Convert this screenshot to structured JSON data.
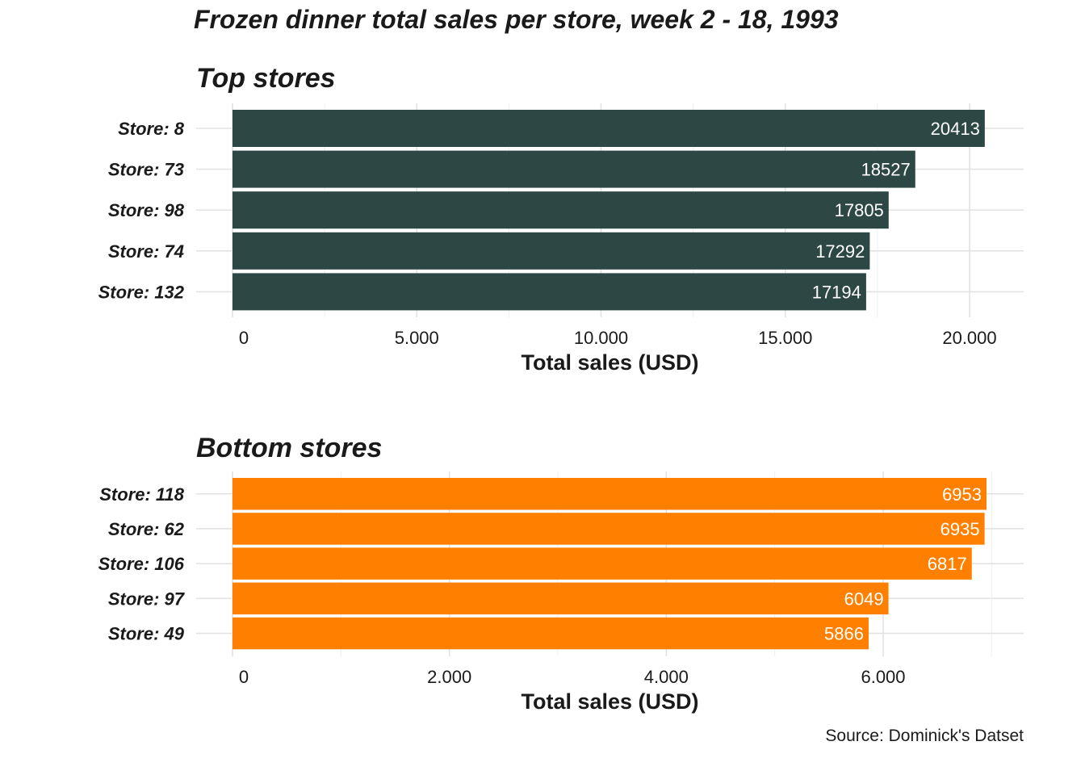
{
  "title": "Frozen dinner total sales per store, week 2 - 18, 1993",
  "caption": "Source: Dominick's Datset",
  "colors": {
    "top": "#2c4744",
    "bottom": "#ff7f00"
  },
  "chart_data": [
    {
      "type": "bar",
      "orientation": "horizontal",
      "title": "Top stores",
      "xlabel": "Total sales (USD)",
      "ylabel": "",
      "categories": [
        "Store: 8",
        "Store: 73",
        "Store: 98",
        "Store: 74",
        "Store: 132"
      ],
      "values": [
        20413,
        18527,
        17805,
        17292,
        17194
      ],
      "value_labels": [
        "20413",
        "18527",
        "17805",
        "17292",
        "17194"
      ],
      "xlim": [
        0,
        21000
      ],
      "ticks": [
        0,
        5000,
        10000,
        15000,
        20000
      ],
      "tick_labels": [
        "0",
        "5.000",
        "10.000",
        "15.000",
        "20.000"
      ],
      "grid": true,
      "color": "#2c4744"
    },
    {
      "type": "bar",
      "orientation": "horizontal",
      "title": "Bottom stores",
      "xlabel": "Total sales (USD)",
      "ylabel": "",
      "categories": [
        "Store: 118",
        "Store: 62",
        "Store: 106",
        "Store: 97",
        "Store: 49"
      ],
      "values": [
        6953,
        6935,
        6817,
        6049,
        5866
      ],
      "value_labels": [
        "6953",
        "6935",
        "6817",
        "6049",
        "5866"
      ],
      "xlim": [
        0,
        7300
      ],
      "ticks": [
        0,
        2000,
        4000,
        6000
      ],
      "tick_labels": [
        "0",
        "2.000",
        "4.000",
        "6.000"
      ],
      "grid": true,
      "color": "#ff7f00"
    }
  ]
}
